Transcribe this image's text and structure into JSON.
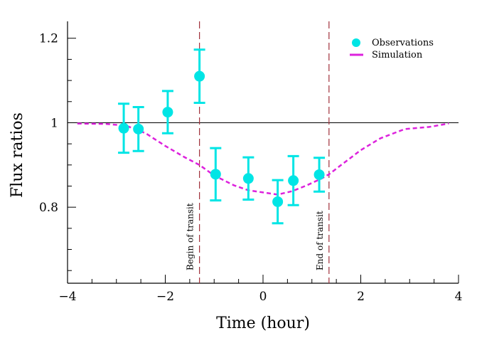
{
  "chart_data": {
    "type": "scatter",
    "title": "",
    "xlabel": "Time (hour)",
    "ylabel": "Flux ratios",
    "xlim": [
      -4,
      4
    ],
    "ylim": [
      0.62,
      1.24
    ],
    "x_ticks": [
      -4,
      -2,
      0,
      2,
      4
    ],
    "x_tick_labels": [
      "−4",
      "−2",
      "0",
      "2",
      "4"
    ],
    "y_ticks": [
      0.8,
      1.0,
      1.2
    ],
    "y_tick_labels": [
      "0.8",
      "1",
      "1.2"
    ],
    "grid": false,
    "legend_position": "top-right",
    "reference_line_y": 1.0,
    "transit_lines": [
      {
        "x": -1.3,
        "label": "Begin of transit"
      },
      {
        "x": 1.35,
        "label": "End of transit"
      }
    ],
    "series": [
      {
        "name": "Observations",
        "kind": "points-with-error-bars",
        "color": "#00e5e5",
        "points": [
          {
            "x": -2.85,
            "y": 0.987,
            "err": 0.058
          },
          {
            "x": -2.55,
            "y": 0.985,
            "err": 0.052
          },
          {
            "x": -1.95,
            "y": 1.025,
            "err": 0.05
          },
          {
            "x": -1.3,
            "y": 1.11,
            "err": 0.063
          },
          {
            "x": -0.97,
            "y": 0.878,
            "err": 0.062
          },
          {
            "x": -0.3,
            "y": 0.868,
            "err": 0.05
          },
          {
            "x": 0.3,
            "y": 0.813,
            "err": 0.051
          },
          {
            "x": 0.62,
            "y": 0.863,
            "err": 0.058
          },
          {
            "x": 1.15,
            "y": 0.877,
            "err": 0.04
          }
        ]
      },
      {
        "name": "Simulation",
        "kind": "dashed-line",
        "color": "#dd22dd",
        "x": [
          -3.8,
          -3.2,
          -2.8,
          -2.4,
          -2.0,
          -1.6,
          -1.3,
          -1.0,
          -0.6,
          -0.3,
          0.0,
          0.3,
          0.6,
          0.9,
          1.2,
          1.35,
          1.6,
          2.0,
          2.4,
          2.9,
          3.4,
          3.8
        ],
        "y": [
          0.998,
          0.997,
          0.993,
          0.975,
          0.945,
          0.918,
          0.9,
          0.875,
          0.852,
          0.84,
          0.835,
          0.83,
          0.838,
          0.852,
          0.868,
          0.878,
          0.9,
          0.935,
          0.963,
          0.985,
          0.99,
          0.998
        ]
      }
    ]
  }
}
